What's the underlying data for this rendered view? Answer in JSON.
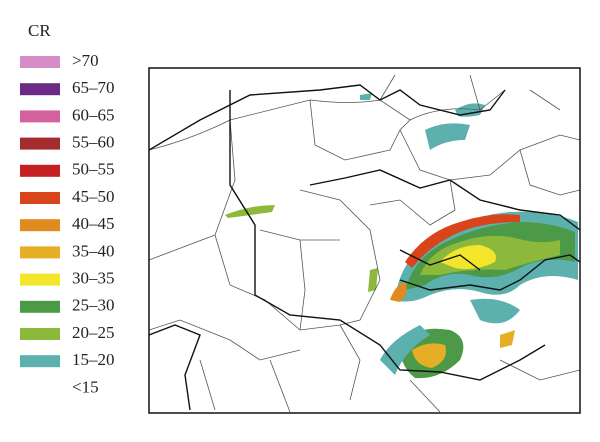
{
  "legend": {
    "title": "CR",
    "items": [
      {
        "label": ">70",
        "color": "#d68cc6"
      },
      {
        "label": "65–70",
        "color": "#6b2a86"
      },
      {
        "label": "60–65",
        "color": "#d4629e"
      },
      {
        "label": "55–60",
        "color": "#a52c2c"
      },
      {
        "label": "50–55",
        "color": "#c42020"
      },
      {
        "label": "45–50",
        "color": "#d9441a"
      },
      {
        "label": "40–45",
        "color": "#e08a20"
      },
      {
        "label": "35–40",
        "color": "#e6ae24"
      },
      {
        "label": "30–35",
        "color": "#f3e42c"
      },
      {
        "label": "25–30",
        "color": "#4c9a48"
      },
      {
        "label": "20–25",
        "color": "#8cb83c"
      },
      {
        "label": "15–20",
        "color": "#5cb0ae"
      },
      {
        "label": "<15"
      }
    ]
  }
}
